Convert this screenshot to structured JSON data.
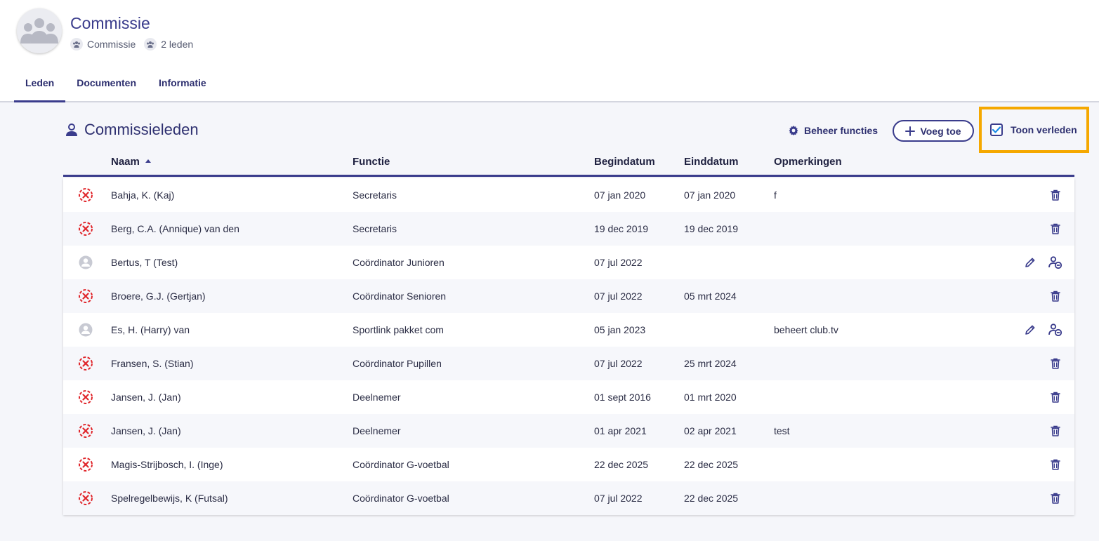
{
  "header": {
    "title": "Commissie",
    "meta_type": "Commissie",
    "meta_count": "2 leden"
  },
  "tabs": [
    {
      "label": "Leden",
      "active": true
    },
    {
      "label": "Documenten",
      "active": false
    },
    {
      "label": "Informatie",
      "active": false
    }
  ],
  "panel": {
    "title": "Commissieleden",
    "beheer_label": "Beheer functies",
    "voeg_label": "Voeg toe",
    "toon_label": "Toon verleden",
    "toon_checked": true
  },
  "columns": {
    "naam": "Naam",
    "functie": "Functie",
    "begindatum": "Begindatum",
    "einddatum": "Einddatum",
    "opmerkingen": "Opmerkingen"
  },
  "colors": {
    "primary": "#3a3c8c",
    "inactive": "#e0262b",
    "highlight": "#f5a800"
  },
  "rows": [
    {
      "status": "past",
      "naam": "Bahja, K. (Kaj)",
      "functie": "Secretaris",
      "begin": "07 jan 2020",
      "eind": "07 jan 2020",
      "opm": "f"
    },
    {
      "status": "past",
      "naam": "Berg, C.A. (Annique) van den",
      "functie": "Secretaris",
      "begin": "19 dec 2019",
      "eind": "19 dec 2019",
      "opm": ""
    },
    {
      "status": "active",
      "naam": "Bertus, T (Test)",
      "functie": "Coördinator Junioren",
      "begin": "07 jul 2022",
      "eind": "",
      "opm": ""
    },
    {
      "status": "past",
      "naam": "Broere, G.J. (Gertjan)",
      "functie": "Coördinator Senioren",
      "begin": "07 jul 2022",
      "eind": "05 mrt 2024",
      "opm": ""
    },
    {
      "status": "active",
      "naam": "Es, H. (Harry) van",
      "functie": "Sportlink pakket com",
      "begin": "05 jan 2023",
      "eind": "",
      "opm": "beheert club.tv"
    },
    {
      "status": "past",
      "naam": "Fransen, S. (Stian)",
      "functie": "Coördinator Pupillen",
      "begin": "07 jul 2022",
      "eind": "25 mrt 2024",
      "opm": ""
    },
    {
      "status": "past",
      "naam": "Jansen, J. (Jan)",
      "functie": "Deelnemer",
      "begin": "01 sept 2016",
      "eind": "01 mrt 2020",
      "opm": ""
    },
    {
      "status": "past",
      "naam": "Jansen, J. (Jan)",
      "functie": "Deelnemer",
      "begin": "01 apr 2021",
      "eind": "02 apr 2021",
      "opm": "test"
    },
    {
      "status": "past",
      "naam": "Magis-Strijbosch, I. (Inge)",
      "functie": "Coördinator G-voetbal",
      "begin": "22 dec 2025",
      "eind": "22 dec 2025",
      "opm": ""
    },
    {
      "status": "past",
      "naam": "Spelregelbewijs, K (Futsal)",
      "functie": "Coördinator G-voetbal",
      "begin": "07 jul 2022",
      "eind": "22 dec 2025",
      "opm": ""
    }
  ]
}
